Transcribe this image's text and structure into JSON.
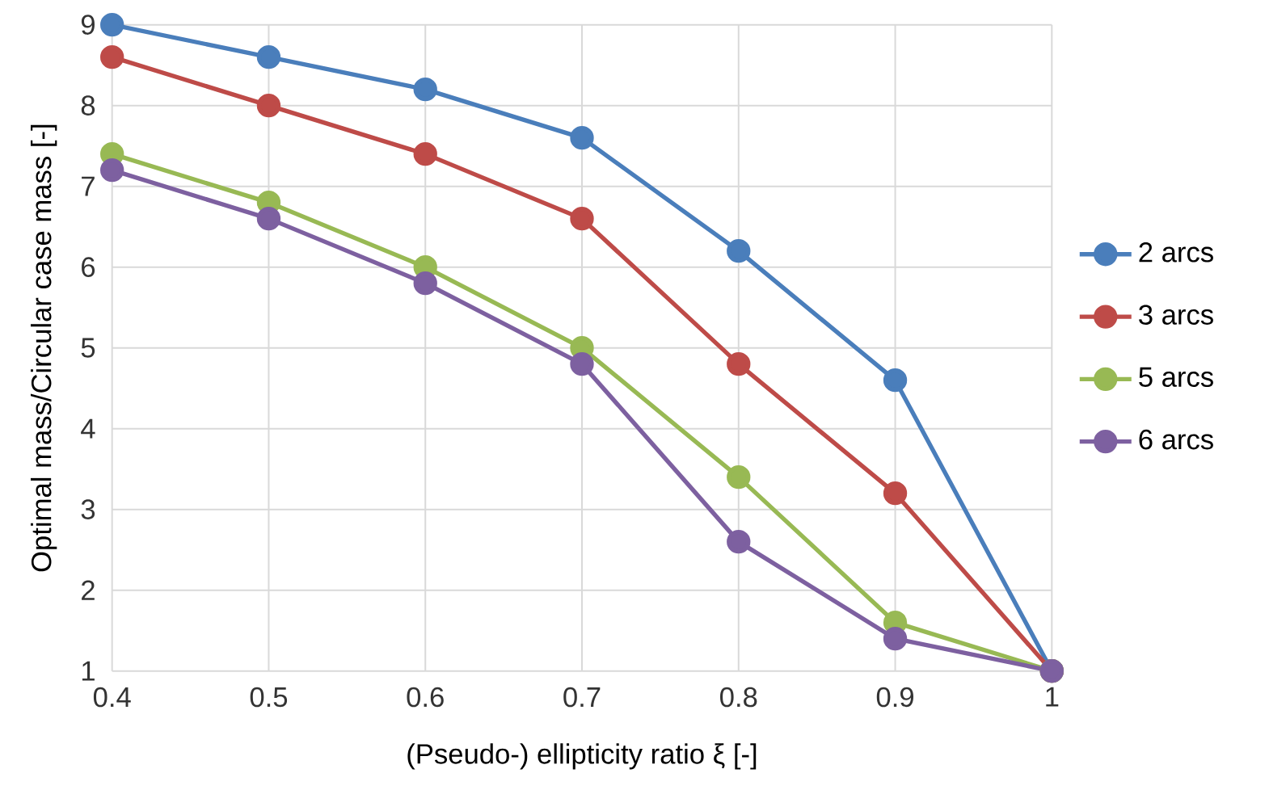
{
  "chart_data": {
    "type": "line",
    "xlabel": "(Pseudo-) ellipticity ratio ξ [-]",
    "ylabel": "Optimal mass/Circular case mass [-]",
    "x": [
      0.4,
      0.5,
      0.6,
      0.7,
      0.8,
      0.9,
      1
    ],
    "series": [
      {
        "name": "2 arcs",
        "color": "#4a7ebb",
        "values": [
          9,
          8.6,
          8.2,
          7.6,
          6.2,
          4.6,
          1
        ]
      },
      {
        "name": "3 arcs",
        "color": "#be4b48",
        "values": [
          8.6,
          8.0,
          7.4,
          6.6,
          4.8,
          3.2,
          1
        ]
      },
      {
        "name": "5 arcs",
        "color": "#98b954",
        "values": [
          7.4,
          6.8,
          6.0,
          5.0,
          3.4,
          1.6,
          1
        ]
      },
      {
        "name": "6 arcs",
        "color": "#7d60a0",
        "values": [
          7.2,
          6.6,
          5.8,
          4.8,
          2.6,
          1.4,
          1
        ]
      }
    ],
    "xlim": [
      0.4,
      1
    ],
    "ylim": [
      1,
      9
    ],
    "xticks": [
      0.4,
      0.5,
      0.6,
      0.7,
      0.8,
      0.9,
      1
    ],
    "yticks": [
      1,
      2,
      3,
      4,
      5,
      6,
      7,
      8,
      9
    ],
    "grid": true,
    "legend": "right",
    "marker": "circle",
    "line_style": "solid"
  }
}
